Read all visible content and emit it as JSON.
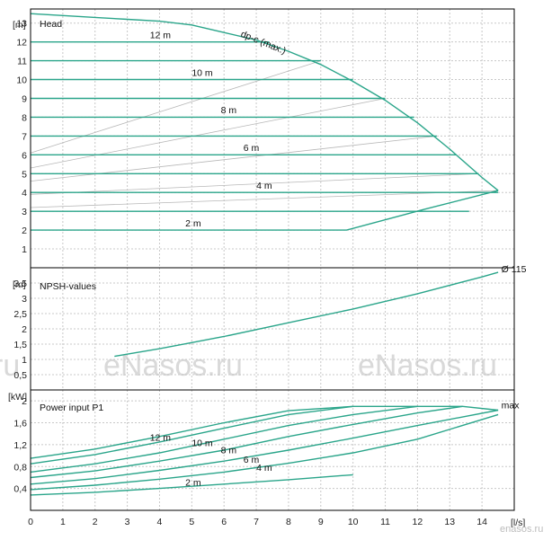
{
  "watermarks": [
    "eNasos.ru",
    "eNasos.ru"
  ],
  "watermark_left_fragment": "ru",
  "logo_text": "enasos.ru",
  "colors": {
    "curve": "#2aa58a",
    "grey_curve": "#b8b8b8",
    "grid": "#c8c8c8",
    "frame": "#000000"
  },
  "chart_data": [
    {
      "type": "line",
      "title": "Head",
      "unit": "[m]",
      "xlim": [
        0,
        15
      ],
      "ylim": [
        0,
        13.75
      ],
      "yticks": [
        1,
        2,
        3,
        4,
        5,
        6,
        7,
        8,
        9,
        10,
        11,
        12,
        13
      ],
      "series": [
        {
          "name": "dp-c (max.)",
          "x": [
            0,
            1,
            2,
            3,
            4,
            5,
            6,
            7,
            8,
            9,
            10,
            11,
            12,
            13,
            14,
            14.5
          ],
          "y": [
            13.5,
            13.4,
            13.3,
            13.2,
            13.1,
            12.9,
            12.5,
            12.1,
            11.5,
            10.8,
            9.9,
            8.9,
            7.7,
            6.3,
            4.8,
            4.1
          ]
        },
        {
          "name": "12 m",
          "x": [
            0,
            7.4
          ],
          "y": [
            12,
            12
          ]
        },
        {
          "name": "",
          "x": [
            0,
            9
          ],
          "y": [
            11,
            11
          ]
        },
        {
          "name": "10 m",
          "x": [
            0,
            10
          ],
          "y": [
            10,
            10
          ]
        },
        {
          "name": "",
          "x": [
            0,
            11
          ],
          "y": [
            9,
            9
          ]
        },
        {
          "name": "8 m",
          "x": [
            0,
            11.9
          ],
          "y": [
            8,
            8
          ]
        },
        {
          "name": "",
          "x": [
            0,
            12.6
          ],
          "y": [
            7,
            7
          ]
        },
        {
          "name": "6 m",
          "x": [
            0,
            13.2
          ],
          "y": [
            6,
            6
          ]
        },
        {
          "name": "",
          "x": [
            0,
            13.9
          ],
          "y": [
            5,
            5
          ]
        },
        {
          "name": "4 m",
          "x": [
            0,
            14.5
          ],
          "y": [
            4,
            4
          ]
        },
        {
          "name": "",
          "x": [
            0,
            13.6
          ],
          "y": [
            3,
            3
          ]
        },
        {
          "name": "2 m",
          "x": [
            0,
            9.8,
            12.2,
            14.5
          ],
          "y": [
            2,
            2,
            3.1,
            4.1
          ]
        }
      ],
      "labels": [
        {
          "text": "12 m",
          "x": 3.7,
          "y": 12.2
        },
        {
          "text": "10 m",
          "x": 5,
          "y": 10.2
        },
        {
          "text": "8 m",
          "x": 5.9,
          "y": 8.2
        },
        {
          "text": "6 m",
          "x": 6.6,
          "y": 6.2
        },
        {
          "text": "4 m",
          "x": 7,
          "y": 4.2
        },
        {
          "text": "2 m",
          "x": 4.8,
          "y": 2.2
        },
        {
          "text": "dp-c (max.)",
          "x": 6.5,
          "y": 12.3
        }
      ]
    },
    {
      "type": "line",
      "title": "NPSH-values",
      "unit": "[m]",
      "xlim": [
        0,
        15
      ],
      "ylim": [
        0,
        4
      ],
      "yticks": [
        0.5,
        1,
        1.5,
        2,
        2.5,
        3,
        3.5
      ],
      "series": [
        {
          "name": "Ø 115",
          "x": [
            2.6,
            4,
            6,
            8,
            10,
            12,
            14,
            14.5
          ],
          "y": [
            1.1,
            1.35,
            1.75,
            2.2,
            2.65,
            3.15,
            3.7,
            3.85
          ]
        }
      ],
      "labels": [
        {
          "text": "Ø 115",
          "x": 14.6,
          "y": 3.85
        }
      ]
    },
    {
      "type": "line",
      "title": "Power input P1",
      "unit": "[kW]",
      "xlim": [
        0,
        15
      ],
      "ylim": [
        0,
        2.2
      ],
      "yticks": [
        0.4,
        0.8,
        1.2,
        1.6,
        2
      ],
      "xlabel": "[l/s]",
      "xticks": [
        0,
        1,
        2,
        3,
        4,
        5,
        6,
        7,
        8,
        9,
        10,
        11,
        12,
        13,
        14
      ],
      "series": [
        {
          "name": "max",
          "x": [
            0,
            2,
            4,
            6,
            8,
            10,
            12,
            13.4,
            14.5
          ],
          "y": [
            0.95,
            1.12,
            1.35,
            1.6,
            1.82,
            1.9,
            1.9,
            1.9,
            1.83
          ]
        },
        {
          "name": "12 m",
          "x": [
            0,
            2,
            4,
            6,
            8,
            10
          ],
          "y": [
            0.85,
            1.02,
            1.25,
            1.5,
            1.75,
            1.9
          ]
        },
        {
          "name": "10 m",
          "x": [
            0,
            2,
            4,
            6,
            8,
            10,
            12
          ],
          "y": [
            0.7,
            0.85,
            1.05,
            1.3,
            1.55,
            1.75,
            1.9
          ]
        },
        {
          "name": "8 m",
          "x": [
            0,
            2,
            4,
            6,
            8,
            10,
            12,
            13.4
          ],
          "y": [
            0.6,
            0.72,
            0.9,
            1.1,
            1.35,
            1.57,
            1.78,
            1.9
          ]
        },
        {
          "name": "6 m",
          "x": [
            0,
            2,
            4,
            6,
            8,
            10,
            12,
            14.5
          ],
          "y": [
            0.48,
            0.58,
            0.73,
            0.9,
            1.1,
            1.32,
            1.55,
            1.83
          ]
        },
        {
          "name": "4 m",
          "x": [
            0,
            2,
            4,
            6,
            8,
            10,
            12,
            14.5
          ],
          "y": [
            0.38,
            0.46,
            0.57,
            0.7,
            0.86,
            1.05,
            1.3,
            1.75
          ]
        },
        {
          "name": "2 m",
          "x": [
            0,
            2,
            4,
            6,
            8,
            10
          ],
          "y": [
            0.28,
            0.33,
            0.4,
            0.48,
            0.56,
            0.65
          ]
        }
      ],
      "labels": [
        {
          "text": "12 m",
          "x": 3.7,
          "y": 1.27
        },
        {
          "text": "10 m",
          "x": 5,
          "y": 1.17
        },
        {
          "text": "8 m",
          "x": 5.9,
          "y": 1.04
        },
        {
          "text": "6 m",
          "x": 6.6,
          "y": 0.87
        },
        {
          "text": "4 m",
          "x": 7,
          "y": 0.72
        },
        {
          "text": "2 m",
          "x": 4.8,
          "y": 0.45
        },
        {
          "text": "max",
          "x": 14.6,
          "y": 1.86
        }
      ]
    }
  ]
}
